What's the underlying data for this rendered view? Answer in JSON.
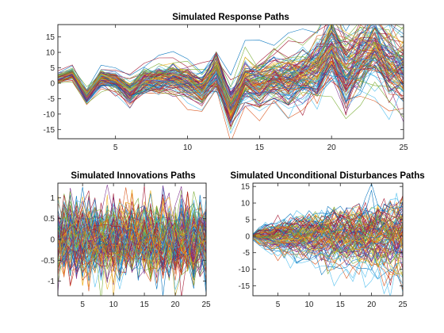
{
  "figure_background": "#ffffff",
  "palette": [
    "#0072BD",
    "#D95319",
    "#EDB120",
    "#7E2F8E",
    "#77AC30",
    "#4DBEEE",
    "#A2142F"
  ],
  "chart_data": [
    {
      "type": "line",
      "id": "response",
      "title": "Simulated Response Paths",
      "xlabel": "",
      "ylabel": "",
      "xlim": [
        1,
        25
      ],
      "ylim": [
        -18,
        19
      ],
      "xticks": [
        5,
        10,
        15,
        20,
        25
      ],
      "yticks": [
        -15,
        -10,
        -5,
        0,
        5,
        10,
        15
      ],
      "grid": false,
      "legend": "none",
      "series_count": 1000,
      "x": [
        1,
        2,
        3,
        4,
        5,
        6,
        7,
        8,
        9,
        10,
        11,
        12,
        13,
        14,
        15,
        16,
        17,
        18,
        19,
        20,
        21,
        22,
        23,
        24,
        25
      ],
      "mean_path": [
        1.5,
        3.0,
        -4.5,
        1.5,
        0.5,
        -3.0,
        0.5,
        1.0,
        1.5,
        0.5,
        -2.5,
        4.0,
        -8.0,
        0.5,
        -1.0,
        1.0,
        0.5,
        2.5,
        4.0,
        11.5,
        3.0,
        7.0,
        11.0,
        6.0,
        4.0
      ],
      "spread_path": [
        1.0,
        1.2,
        1.5,
        2.0,
        2.2,
        2.5,
        2.8,
        3.0,
        3.3,
        3.6,
        3.9,
        4.2,
        4.6,
        5.0,
        5.4,
        5.8,
        6.2,
        6.5,
        6.9,
        7.2,
        7.5,
        7.8,
        8.1,
        8.4,
        8.6
      ]
    },
    {
      "type": "line",
      "id": "innovations",
      "title": "Simulated Innovations Paths",
      "xlabel": "",
      "ylabel": "",
      "xlim": [
        1,
        25
      ],
      "ylim": [
        -1.35,
        1.35
      ],
      "xticks": [
        5,
        10,
        15,
        20,
        25
      ],
      "yticks": [
        -1,
        -0.5,
        0,
        0.5,
        1
      ],
      "grid": false,
      "legend": "none",
      "series_count": 1000,
      "x": [
        1,
        2,
        3,
        4,
        5,
        6,
        7,
        8,
        9,
        10,
        11,
        12,
        13,
        14,
        15,
        16,
        17,
        18,
        19,
        20,
        21,
        22,
        23,
        24,
        25
      ],
      "mean_path": [
        0,
        0,
        0,
        0,
        0,
        0,
        0,
        0,
        0,
        0,
        0,
        0,
        0,
        0,
        0,
        0,
        0,
        0,
        0,
        0,
        0,
        0,
        0,
        0,
        0
      ],
      "spread_path": [
        0.45,
        0.45,
        0.45,
        0.45,
        0.45,
        0.45,
        0.45,
        0.45,
        0.45,
        0.45,
        0.45,
        0.45,
        0.45,
        0.45,
        0.45,
        0.45,
        0.45,
        0.45,
        0.45,
        0.45,
        0.45,
        0.45,
        0.45,
        0.45,
        0.45
      ]
    },
    {
      "type": "line",
      "id": "disturbances",
      "title": "Simulated Unconditional Disturbances Paths",
      "xlabel": "",
      "ylabel": "",
      "xlim": [
        1,
        25
      ],
      "ylim": [
        -18,
        16
      ],
      "xticks": [
        5,
        10,
        15,
        20,
        25
      ],
      "yticks": [
        -15,
        -10,
        -5,
        0,
        5,
        10,
        15
      ],
      "grid": false,
      "legend": "none",
      "series_count": 1000,
      "x": [
        1,
        2,
        3,
        4,
        5,
        6,
        7,
        8,
        9,
        10,
        11,
        12,
        13,
        14,
        15,
        16,
        17,
        18,
        19,
        20,
        21,
        22,
        23,
        24,
        25
      ],
      "mean_path": [
        0,
        0,
        0,
        0,
        0,
        0,
        0,
        0,
        0,
        0,
        0,
        0,
        0,
        0,
        0,
        0,
        0,
        0,
        0,
        0,
        0,
        0,
        0,
        0,
        0
      ],
      "spread_path": [
        0.4,
        1.2,
        1.7,
        2.1,
        2.4,
        2.7,
        3.0,
        3.2,
        3.5,
        3.7,
        3.9,
        4.1,
        4.3,
        4.5,
        4.7,
        4.9,
        5.0,
        5.2,
        5.4,
        5.6,
        5.8,
        5.9,
        6.1,
        6.3,
        6.4
      ]
    }
  ]
}
